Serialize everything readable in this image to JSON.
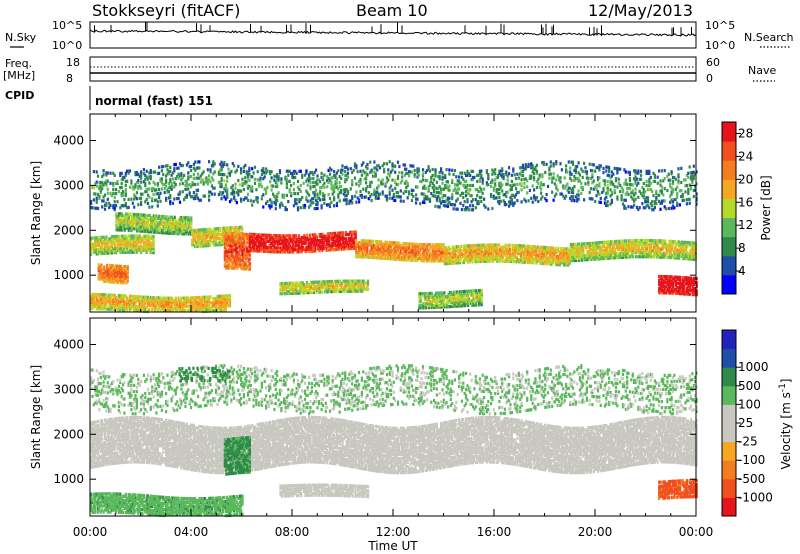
{
  "header": {
    "station": "Stokkseyri (fitACF)",
    "beam": "Beam 10",
    "date": "12/May/2013"
  },
  "strips": {
    "nsky_label": "N.Sky",
    "nsearch_label": "N.Search",
    "nsky_ticks": [
      "10^5",
      "10^0"
    ],
    "nsearch_ticks": [
      "10^5",
      "10^0"
    ],
    "freq_label_1": "Freq.",
    "freq_label_2": "[MHz]",
    "freq_ticks": [
      "18",
      "8"
    ],
    "nave_label": "Nave",
    "nave_ticks": [
      "60",
      "0"
    ],
    "cpid_label": "CPID",
    "cpid_value": "normal (fast) 151"
  },
  "colors": {
    "power_scale": [
      "#0000ff",
      "#1f4ea8",
      "#2f8a4a",
      "#5cb85c",
      "#b5d92b",
      "#f5a623",
      "#f57c1f",
      "#f24e1e",
      "#e8141c"
    ],
    "velocity_scale": [
      "#e8141c",
      "#f24e1e",
      "#f57c1f",
      "#f5a623",
      "#c8c8c0",
      "#c8c8c0",
      "#5cb85c",
      "#2f8a4a",
      "#1f4ea8",
      "#2222bb"
    ],
    "ground_scatter": "#c8c8c0"
  },
  "chart_data": [
    {
      "type": "heatmap",
      "name": "power-panel",
      "ylabel": "Slant Range [km]",
      "yticks": [
        "1000",
        "2000",
        "3000",
        "4000"
      ],
      "ylim": [
        180,
        4590
      ],
      "xlim": [
        0,
        24
      ],
      "colorbar_label": "Power [dB]",
      "colorbar_ticks": [
        "4",
        "8",
        "12",
        "16",
        "20",
        "24",
        "28"
      ],
      "colorbar_range": [
        0,
        30
      ],
      "bands": [
        {
          "t": [
            0.0,
            2.5
          ],
          "r": [
            1500,
            1900
          ],
          "v": 12
        },
        {
          "t": [
            1.0,
            4.0
          ],
          "r": [
            2000,
            2400
          ],
          "v": 10
        },
        {
          "t": [
            4.0,
            6.0
          ],
          "r": [
            1700,
            2100
          ],
          "v": 13
        },
        {
          "t": [
            5.3,
            6.3
          ],
          "r": [
            1100,
            1900
          ],
          "v": 20
        },
        {
          "t": [
            6.3,
            10.5
          ],
          "r": [
            1600,
            2000
          ],
          "v": 25
        },
        {
          "t": [
            10.5,
            14.0
          ],
          "r": [
            1400,
            1800
          ],
          "v": 17
        },
        {
          "t": [
            14.0,
            19.0
          ],
          "r": [
            1300,
            1700
          ],
          "v": 14
        },
        {
          "t": [
            19.0,
            24.0
          ],
          "r": [
            1400,
            1800
          ],
          "v": 12
        },
        {
          "t": [
            0.0,
            5.5
          ],
          "r": [
            250,
            600
          ],
          "v": 14
        },
        {
          "t": [
            0.3,
            1.5
          ],
          "r": [
            900,
            1300
          ],
          "v": 18
        },
        {
          "t": [
            0.0,
            24.0
          ],
          "r": [
            2600,
            3500
          ],
          "v": 5
        },
        {
          "t": [
            7.5,
            11.0
          ],
          "r": [
            650,
            900
          ],
          "v": 12
        },
        {
          "t": [
            13.0,
            15.5
          ],
          "r": [
            350,
            700
          ],
          "v": 10
        },
        {
          "t": [
            22.5,
            24.0
          ],
          "r": [
            600,
            1000
          ],
          "v": 27
        }
      ]
    },
    {
      "type": "heatmap",
      "name": "velocity-panel",
      "ylabel": "Slant Range [km]",
      "xlabel": "Time UT",
      "yticks": [
        "1000",
        "2000",
        "3000",
        "4000"
      ],
      "ylim": [
        180,
        4590
      ],
      "xticks": [
        "00:00",
        "04:00",
        "08:00",
        "12:00",
        "16:00",
        "20:00",
        "00:00"
      ],
      "xlim": [
        0,
        24
      ],
      "colorbar_label": "Velocity [m s^-1]",
      "colorbar_ticks": [
        "-1000",
        "-500",
        "-100",
        "-25",
        "25",
        "100",
        "500",
        "1000"
      ],
      "bands": [
        {
          "t": [
            0.0,
            24.0
          ],
          "r": [
            1300,
            2300
          ],
          "v": 0
        },
        {
          "t": [
            0.0,
            6.0
          ],
          "r": [
            250,
            700
          ],
          "v": 80
        },
        {
          "t": [
            5.3,
            6.3
          ],
          "r": [
            1100,
            1900
          ],
          "v": 120
        },
        {
          "t": [
            0.0,
            24.0
          ],
          "r": [
            2600,
            3500
          ],
          "v": 30
        },
        {
          "t": [
            3.5,
            5.5
          ],
          "r": [
            3200,
            3500
          ],
          "v": 200
        },
        {
          "t": [
            22.5,
            24.0
          ],
          "r": [
            600,
            1000
          ],
          "v": -600
        },
        {
          "t": [
            7.5,
            11.0
          ],
          "r": [
            650,
            900
          ],
          "v": 0
        }
      ]
    }
  ]
}
